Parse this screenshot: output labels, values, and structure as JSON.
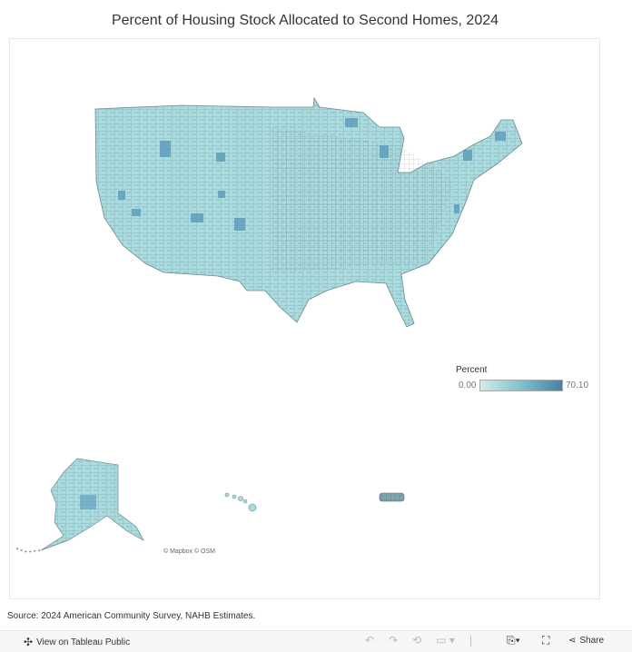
{
  "title": "Percent of Housing Stock Allocated to Second Homes, 2024",
  "legend": {
    "title": "Percent",
    "min": "0.00",
    "max": "70.10",
    "color_low": "#d3ece8",
    "color_mid": "#7cc2cc",
    "color_high": "#4a7fa8"
  },
  "map_attribution": "© Mapbox  © OSM",
  "source": "Source: 2024 American Community Survey, NAHB Estimates.",
  "toolbar": {
    "view_on_tableau": "View on Tableau Public",
    "share": "Share",
    "icons": [
      "tableau-logo-icon",
      "undo-icon",
      "redo-icon",
      "revert-icon",
      "pause-updates-icon",
      "download-icon",
      "fullscreen-icon",
      "share-icon"
    ]
  }
}
